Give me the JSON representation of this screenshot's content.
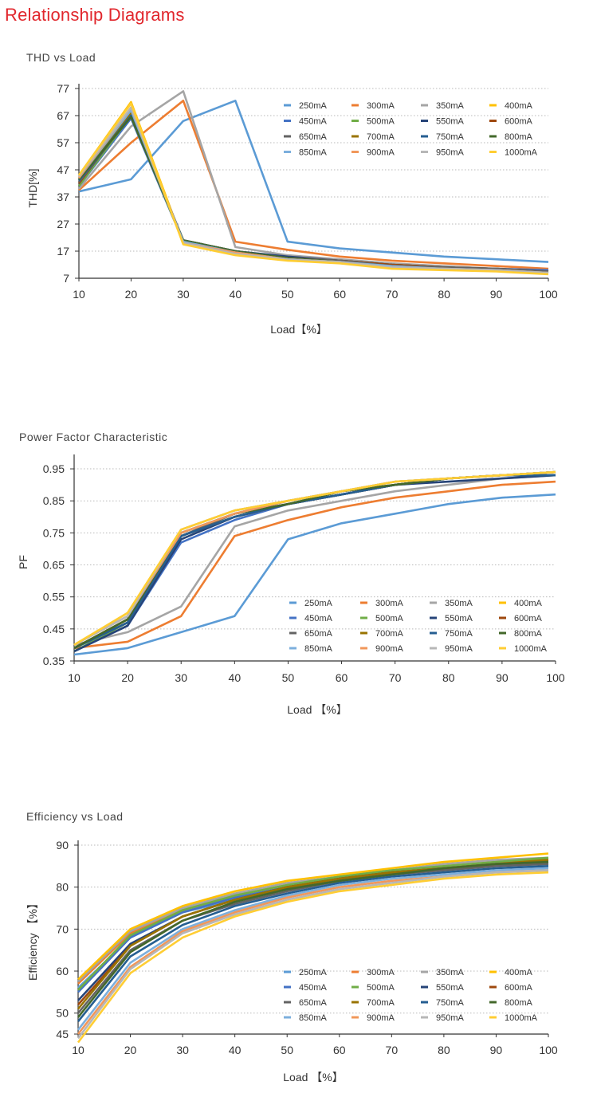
{
  "page": {
    "title": "Relationship Diagrams"
  },
  "chart_data": [
    {
      "type": "line",
      "title": "THD vs Load",
      "xlabel": "Load【%】",
      "ylabel": "THD[%]",
      "x": [
        10,
        20,
        30,
        40,
        50,
        60,
        70,
        80,
        90,
        100
      ],
      "xlim": [
        10,
        100
      ],
      "ylim": [
        7,
        77
      ],
      "xticks": [
        10,
        20,
        30,
        40,
        50,
        60,
        70,
        80,
        90,
        100
      ],
      "yticks": [
        7,
        17,
        27,
        37,
        47,
        57,
        67,
        77
      ],
      "grid": "horizontal dotted",
      "legend_position": "top-right",
      "series": [
        {
          "name": "250mA",
          "color": "#5b9bd5",
          "values": [
            39,
            43.5,
            65,
            72.5,
            20.5,
            18,
            16.5,
            15,
            14,
            13
          ]
        },
        {
          "name": "300mA",
          "color": "#ed7d31",
          "values": [
            39.5,
            57,
            72.5,
            20.5,
            17.5,
            15,
            13.5,
            12.5,
            11.5,
            10.5
          ]
        },
        {
          "name": "350mA",
          "color": "#a5a5a5",
          "values": [
            40,
            63,
            76,
            18.5,
            15.5,
            14,
            12.5,
            11.5,
            10.5,
            10
          ]
        },
        {
          "name": "400mA",
          "color": "#ffc000",
          "values": [
            45,
            72,
            20,
            16,
            14,
            13,
            11,
            10.5,
            10,
            9
          ]
        },
        {
          "name": "450mA",
          "color": "#4472c4",
          "values": [
            41,
            66,
            20.5,
            17,
            14.5,
            13.5,
            12,
            11,
            10.5,
            10
          ]
        },
        {
          "name": "500mA",
          "color": "#70ad47",
          "values": [
            41,
            67,
            20.5,
            16.5,
            14.5,
            13.5,
            12,
            11,
            10.5,
            9.5
          ]
        },
        {
          "name": "550mA",
          "color": "#264478",
          "values": [
            42,
            67.5,
            21,
            17,
            15,
            13.5,
            12,
            11,
            10.5,
            9.5
          ]
        },
        {
          "name": "600mA",
          "color": "#9e480e",
          "values": [
            42,
            68,
            21,
            17,
            14.5,
            13.5,
            12,
            11,
            10.5,
            9.5
          ]
        },
        {
          "name": "650mA",
          "color": "#636363",
          "values": [
            42.5,
            67,
            21,
            17,
            14.5,
            13.5,
            11.5,
            11,
            10.5,
            9.5
          ]
        },
        {
          "name": "700mA",
          "color": "#997300",
          "values": [
            43,
            68,
            20.5,
            16.5,
            14.5,
            13,
            11.5,
            10.5,
            10,
            9
          ]
        },
        {
          "name": "750mA",
          "color": "#255e91",
          "values": [
            43,
            67,
            21,
            17,
            14.5,
            13,
            11.5,
            10.5,
            10,
            9
          ]
        },
        {
          "name": "800mA",
          "color": "#43682b",
          "values": [
            43.5,
            66.5,
            21,
            17,
            14.5,
            13,
            11.5,
            10.5,
            10,
            9
          ]
        },
        {
          "name": "850mA",
          "color": "#7cafdd",
          "values": [
            44,
            69,
            20.5,
            16.5,
            14,
            13,
            11.5,
            10.5,
            10,
            9
          ]
        },
        {
          "name": "900mA",
          "color": "#f1975a",
          "values": [
            44,
            70,
            20,
            16.5,
            14,
            13,
            11,
            10.5,
            10,
            9
          ]
        },
        {
          "name": "950mA",
          "color": "#b7b7b7",
          "values": [
            44.5,
            70,
            20,
            16,
            14,
            13,
            11,
            10.5,
            10,
            9
          ]
        },
        {
          "name": "1000mA",
          "color": "#ffcd33",
          "values": [
            45,
            71.5,
            19.5,
            15.5,
            13.5,
            12.5,
            10.5,
            10,
            9.5,
            8.5
          ]
        }
      ]
    },
    {
      "type": "line",
      "title": "Power Factor Characteristic",
      "xlabel": "Load 【%】",
      "ylabel": "PF",
      "x": [
        10,
        20,
        30,
        40,
        50,
        60,
        70,
        80,
        90,
        100
      ],
      "xlim": [
        10,
        100
      ],
      "ylim": [
        0.35,
        0.98
      ],
      "xticks": [
        10,
        20,
        30,
        40,
        50,
        60,
        70,
        80,
        90,
        100
      ],
      "yticks": [
        0.35,
        0.45,
        0.55,
        0.65,
        0.75,
        0.85,
        0.95
      ],
      "grid": "horizontal dotted",
      "legend_position": "bottom-right",
      "series": [
        {
          "name": "250mA",
          "color": "#5b9bd5",
          "values": [
            0.37,
            0.39,
            0.44,
            0.49,
            0.73,
            0.78,
            0.81,
            0.84,
            0.86,
            0.87
          ]
        },
        {
          "name": "300mA",
          "color": "#ed7d31",
          "values": [
            0.39,
            0.41,
            0.49,
            0.74,
            0.79,
            0.83,
            0.86,
            0.88,
            0.9,
            0.91
          ]
        },
        {
          "name": "350mA",
          "color": "#a5a5a5",
          "values": [
            0.4,
            0.44,
            0.52,
            0.77,
            0.82,
            0.85,
            0.88,
            0.9,
            0.92,
            0.93
          ]
        },
        {
          "name": "400mA",
          "color": "#ffc000",
          "values": [
            0.4,
            0.5,
            0.76,
            0.82,
            0.85,
            0.88,
            0.91,
            0.92,
            0.93,
            0.94
          ]
        },
        {
          "name": "450mA",
          "color": "#4472c4",
          "values": [
            0.38,
            0.46,
            0.72,
            0.79,
            0.84,
            0.87,
            0.9,
            0.92,
            0.93,
            0.93
          ]
        },
        {
          "name": "500mA",
          "color": "#70ad47",
          "values": [
            0.38,
            0.47,
            0.74,
            0.8,
            0.84,
            0.87,
            0.9,
            0.92,
            0.93,
            0.94
          ]
        },
        {
          "name": "550mA",
          "color": "#264478",
          "values": [
            0.38,
            0.46,
            0.73,
            0.8,
            0.84,
            0.87,
            0.9,
            0.91,
            0.92,
            0.93
          ]
        },
        {
          "name": "600mA",
          "color": "#9e480e",
          "values": [
            0.39,
            0.48,
            0.74,
            0.8,
            0.84,
            0.87,
            0.9,
            0.92,
            0.93,
            0.94
          ]
        },
        {
          "name": "650mA",
          "color": "#636363",
          "values": [
            0.39,
            0.47,
            0.74,
            0.81,
            0.84,
            0.87,
            0.9,
            0.92,
            0.93,
            0.93
          ]
        },
        {
          "name": "700mA",
          "color": "#997300",
          "values": [
            0.39,
            0.48,
            0.75,
            0.81,
            0.85,
            0.88,
            0.9,
            0.92,
            0.93,
            0.94
          ]
        },
        {
          "name": "750mA",
          "color": "#255e91",
          "values": [
            0.39,
            0.47,
            0.74,
            0.8,
            0.84,
            0.87,
            0.9,
            0.92,
            0.93,
            0.93
          ]
        },
        {
          "name": "800mA",
          "color": "#43682b",
          "values": [
            0.39,
            0.48,
            0.75,
            0.81,
            0.84,
            0.88,
            0.9,
            0.92,
            0.93,
            0.94
          ]
        },
        {
          "name": "850mA",
          "color": "#7cafdd",
          "values": [
            0.4,
            0.49,
            0.75,
            0.81,
            0.85,
            0.88,
            0.91,
            0.92,
            0.93,
            0.94
          ]
        },
        {
          "name": "900mA",
          "color": "#f1975a",
          "values": [
            0.4,
            0.49,
            0.75,
            0.81,
            0.85,
            0.88,
            0.91,
            0.92,
            0.93,
            0.94
          ]
        },
        {
          "name": "950mA",
          "color": "#b7b7b7",
          "values": [
            0.4,
            0.49,
            0.76,
            0.82,
            0.85,
            0.88,
            0.91,
            0.92,
            0.93,
            0.94
          ]
        },
        {
          "name": "1000mA",
          "color": "#ffcd33",
          "values": [
            0.4,
            0.5,
            0.76,
            0.82,
            0.85,
            0.88,
            0.91,
            0.92,
            0.93,
            0.94
          ]
        }
      ]
    },
    {
      "type": "line",
      "title": "Efficiency vs Load",
      "xlabel": "Load 【%】",
      "ylabel": "Efficiency 【%】",
      "x": [
        10,
        20,
        30,
        40,
        50,
        60,
        70,
        80,
        90,
        100
      ],
      "xlim": [
        10,
        100
      ],
      "ylim": [
        45,
        90
      ],
      "xticks": [
        10,
        20,
        30,
        40,
        50,
        60,
        70,
        80,
        90,
        100
      ],
      "yticks": [
        45,
        50,
        60,
        70,
        80,
        90
      ],
      "grid": "horizontal dotted",
      "legend_position": "bottom-right",
      "series": [
        {
          "name": "250mA",
          "color": "#5b9bd5",
          "values": [
            56,
            68,
            74,
            77,
            79.5,
            81.5,
            83,
            84,
            85,
            85.5
          ]
        },
        {
          "name": "300mA",
          "color": "#ed7d31",
          "values": [
            57,
            69,
            74.5,
            78,
            80.5,
            82,
            83.5,
            85,
            86,
            86.5
          ]
        },
        {
          "name": "350mA",
          "color": "#a5a5a5",
          "values": [
            57.5,
            69.5,
            75,
            78.5,
            81,
            82.5,
            84,
            85.5,
            86.5,
            87
          ]
        },
        {
          "name": "400mA",
          "color": "#ffc000",
          "values": [
            58,
            70,
            75.5,
            79,
            81.5,
            83,
            84.5,
            86,
            87,
            88
          ]
        },
        {
          "name": "450mA",
          "color": "#4472c4",
          "values": [
            55,
            68,
            74,
            77.5,
            80,
            82,
            83.5,
            84.5,
            85.5,
            86
          ]
        },
        {
          "name": "500mA",
          "color": "#70ad47",
          "values": [
            55.5,
            68.5,
            74.5,
            78,
            80.5,
            82.5,
            84,
            85,
            86,
            87
          ]
        },
        {
          "name": "550mA",
          "color": "#264478",
          "values": [
            53,
            66.5,
            73,
            77,
            80,
            82,
            83.5,
            84.5,
            85.5,
            86
          ]
        },
        {
          "name": "600mA",
          "color": "#9e480e",
          "values": [
            52,
            66,
            73,
            77,
            80,
            82,
            83.5,
            84.5,
            85.5,
            86
          ]
        },
        {
          "name": "650mA",
          "color": "#636363",
          "values": [
            50,
            65,
            72,
            76,
            79,
            81.5,
            83,
            84,
            85,
            85.5
          ]
        },
        {
          "name": "700mA",
          "color": "#997300",
          "values": [
            51,
            66,
            73,
            77,
            80,
            82,
            83.5,
            84.5,
            85.5,
            86.5
          ]
        },
        {
          "name": "750mA",
          "color": "#255e91",
          "values": [
            48,
            63.5,
            71,
            75.5,
            78.5,
            81,
            82.5,
            83.5,
            84.5,
            85
          ]
        },
        {
          "name": "800mA",
          "color": "#43682b",
          "values": [
            49,
            64.5,
            72,
            76.5,
            79.5,
            81.5,
            83,
            84.5,
            85.5,
            86
          ]
        },
        {
          "name": "850mA",
          "color": "#7cafdd",
          "values": [
            46,
            62,
            70,
            74.5,
            78,
            80.5,
            82,
            83,
            84,
            84.5
          ]
        },
        {
          "name": "900mA",
          "color": "#f1975a",
          "values": [
            45,
            61,
            69.5,
            74,
            77.5,
            80,
            81.5,
            82.5,
            83.5,
            84
          ]
        },
        {
          "name": "950mA",
          "color": "#b7b7b7",
          "values": [
            44,
            60.5,
            69,
            73.5,
            77,
            79.5,
            81,
            82.5,
            83.5,
            84
          ]
        },
        {
          "name": "1000mA",
          "color": "#ffcd33",
          "values": [
            43,
            59.5,
            68,
            73,
            76.5,
            79,
            80.5,
            82,
            83,
            83.5
          ]
        }
      ]
    }
  ]
}
